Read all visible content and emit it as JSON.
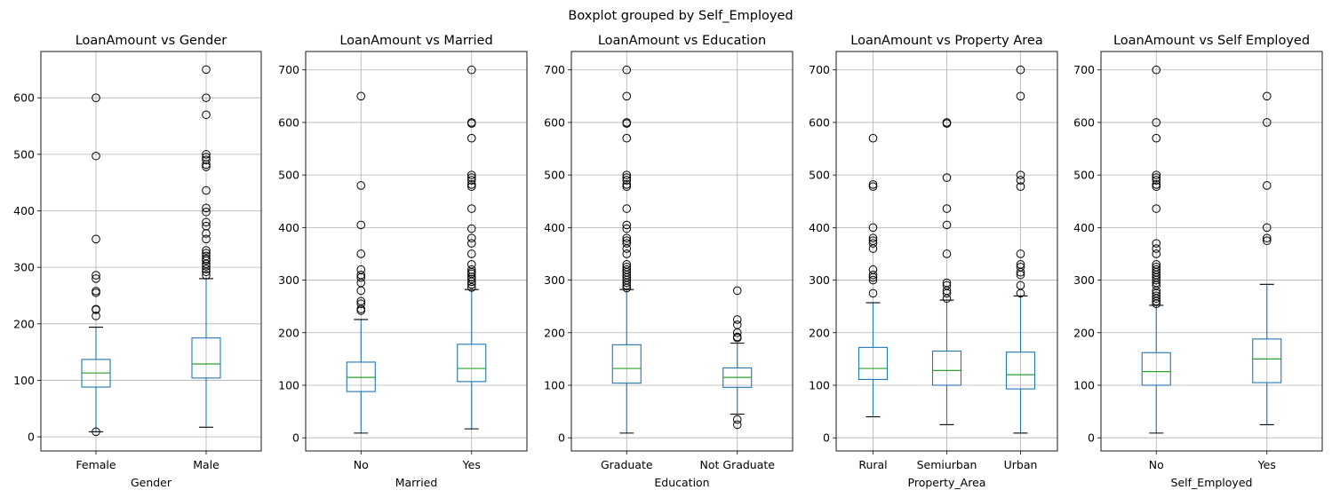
{
  "suptitle": "Boxplot grouped by Self_Employed",
  "colors": {
    "box": "#1f77b4",
    "median": "#2ca02c",
    "grid": "#b0b0b0",
    "flier": "#000000"
  },
  "chart_data": [
    {
      "type": "boxplot",
      "title": "LoanAmount vs Gender",
      "xlabel": "Gender",
      "ylim": [
        -25,
        682
      ],
      "yticks": [
        0,
        100,
        200,
        300,
        400,
        500,
        600
      ],
      "grid": true,
      "categories": [
        "Female",
        "Male"
      ],
      "boxes": [
        {
          "whisker_low": 9,
          "q1": 88,
          "median": 113,
          "q3": 137,
          "whisker_high": 194,
          "fliers": [
            9,
            214,
            225,
            226,
            255,
            258,
            280,
            286,
            350,
            497,
            600
          ]
        },
        {
          "whisker_low": 17,
          "q1": 104,
          "median": 129,
          "q3": 175,
          "whisker_high": 280,
          "fliers": [
            286,
            292,
            297,
            302,
            306,
            312,
            315,
            320,
            325,
            330,
            350,
            360,
            373,
            380,
            398,
            405,
            436,
            478,
            482,
            490,
            495,
            500,
            570,
            600,
            650
          ]
        }
      ]
    },
    {
      "type": "boxplot",
      "title": "LoanAmount vs Married",
      "xlabel": "Married",
      "ylim": [
        -25,
        735
      ],
      "yticks": [
        0,
        100,
        200,
        300,
        400,
        500,
        600,
        700
      ],
      "grid": true,
      "categories": [
        "No",
        "Yes"
      ],
      "boxes": [
        {
          "whisker_low": 9,
          "q1": 88,
          "median": 115,
          "q3": 144,
          "whisker_high": 225,
          "fliers": [
            242,
            245,
            255,
            260,
            280,
            295,
            305,
            310,
            320,
            350,
            405,
            480,
            650
          ]
        },
        {
          "whisker_low": 17,
          "q1": 107,
          "median": 132,
          "q3": 178,
          "whisker_high": 282,
          "fliers": [
            286,
            292,
            297,
            302,
            306,
            312,
            315,
            320,
            330,
            350,
            370,
            380,
            398,
            436,
            478,
            482,
            490,
            495,
            500,
            570,
            598,
            600,
            700
          ]
        }
      ]
    },
    {
      "type": "boxplot",
      "title": "LoanAmount vs Education",
      "xlabel": "Education",
      "ylim": [
        -25,
        735
      ],
      "yticks": [
        0,
        100,
        200,
        300,
        400,
        500,
        600,
        700
      ],
      "grid": true,
      "categories": [
        "Graduate",
        "Not Graduate"
      ],
      "boxes": [
        {
          "whisker_low": 9,
          "q1": 104,
          "median": 132,
          "q3": 177,
          "whisker_high": 282,
          "fliers": [
            285,
            290,
            295,
            300,
            305,
            310,
            315,
            320,
            325,
            330,
            350,
            360,
            370,
            375,
            380,
            398,
            405,
            436,
            478,
            482,
            490,
            495,
            500,
            570,
            598,
            600,
            650,
            700
          ]
        },
        {
          "whisker_low": 45,
          "q1": 96,
          "median": 115,
          "q3": 133,
          "whisker_high": 180,
          "fliers": [
            25,
            35,
            190,
            192,
            200,
            215,
            225,
            280
          ]
        }
      ]
    },
    {
      "type": "boxplot",
      "title": "LoanAmount vs Property Area",
      "xlabel": "Property_Area",
      "ylim": [
        -25,
        735
      ],
      "yticks": [
        0,
        100,
        200,
        300,
        400,
        500,
        600,
        700
      ],
      "grid": true,
      "categories": [
        "Rural",
        "Semiurban",
        "Urban"
      ],
      "boxes": [
        {
          "whisker_low": 40,
          "q1": 111,
          "median": 132,
          "q3": 172,
          "whisker_high": 257,
          "fliers": [
            275,
            300,
            305,
            310,
            320,
            360,
            370,
            375,
            380,
            400,
            478,
            482,
            570
          ]
        },
        {
          "whisker_low": 25,
          "q1": 100,
          "median": 128,
          "q3": 165,
          "whisker_high": 262,
          "fliers": [
            265,
            275,
            280,
            290,
            295,
            350,
            405,
            436,
            495,
            598,
            600
          ]
        },
        {
          "whisker_low": 9,
          "q1": 93,
          "median": 120,
          "q3": 163,
          "whisker_high": 270,
          "fliers": [
            275,
            290,
            310,
            315,
            325,
            330,
            350,
            478,
            490,
            500,
            650,
            700
          ]
        }
      ]
    },
    {
      "type": "boxplot",
      "title": "LoanAmount vs Self Employed",
      "xlabel": "Self_Employed",
      "ylim": [
        -25,
        735
      ],
      "yticks": [
        0,
        100,
        200,
        300,
        400,
        500,
        600,
        700
      ],
      "grid": true,
      "categories": [
        "No",
        "Yes"
      ],
      "boxes": [
        {
          "whisker_low": 9,
          "q1": 100,
          "median": 126,
          "q3": 162,
          "whisker_high": 252,
          "fliers": [
            255,
            260,
            265,
            270,
            275,
            280,
            290,
            295,
            300,
            305,
            310,
            315,
            320,
            325,
            330,
            350,
            360,
            370,
            436,
            478,
            482,
            490,
            495,
            500,
            570,
            600,
            700
          ]
        },
        {
          "whisker_low": 25,
          "q1": 105,
          "median": 150,
          "q3": 188,
          "whisker_high": 292,
          "fliers": [
            375,
            380,
            400,
            480,
            600,
            650
          ]
        }
      ]
    }
  ]
}
